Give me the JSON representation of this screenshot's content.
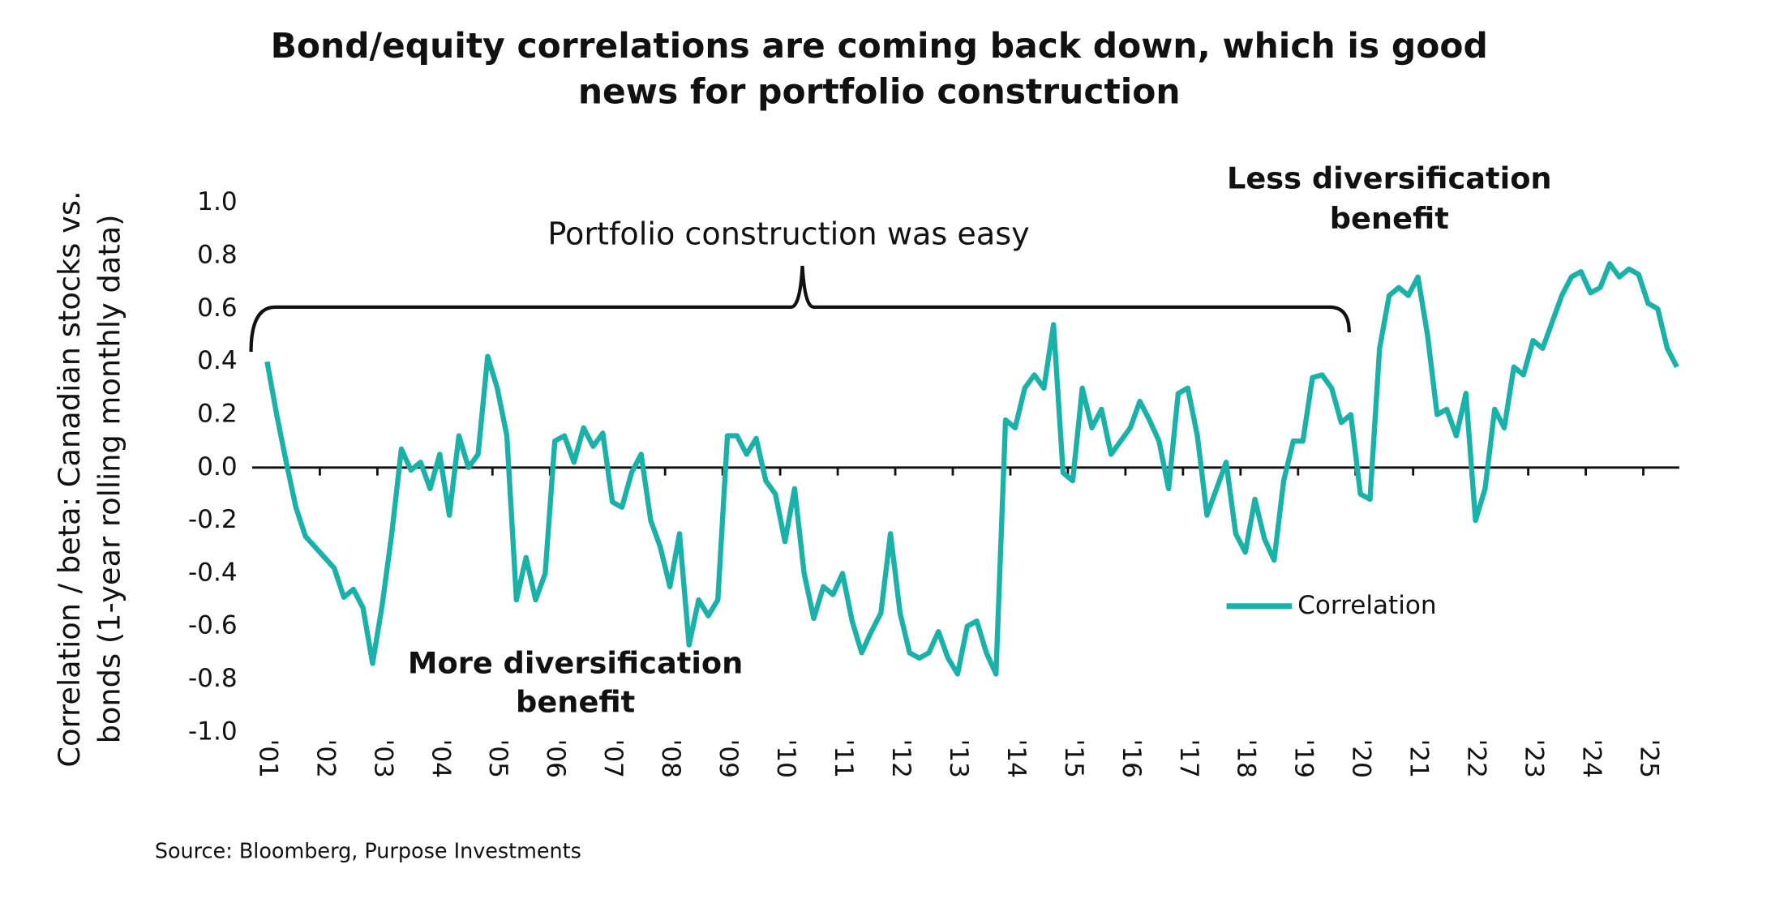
{
  "chart_data": {
    "type": "line",
    "title": [
      "Bond/equity correlations are coming back down, which is good",
      "news for portfolio construction"
    ],
    "ylabel": [
      "Correlation / beta: Canadian stocks vs.",
      "bonds (1-year rolling monthly data)"
    ],
    "source": "Source: Bloomberg, Purpose Investments",
    "annotations": [
      {
        "lines": [
          "Portfolio construction was easy"
        ]
      },
      {
        "lines": [
          "Less diversification",
          "benefit"
        ]
      },
      {
        "lines": [
          "More diversification",
          "benefit"
        ]
      }
    ],
    "categories": [
      "'01",
      null,
      null,
      null,
      null,
      null,
      "'02",
      null,
      null,
      null,
      null,
      null,
      "'03",
      null,
      null,
      null,
      null,
      null,
      "'04",
      null,
      null,
      null,
      null,
      null,
      "'05",
      null,
      null,
      null,
      null,
      null,
      "'06",
      null,
      null,
      null,
      null,
      null,
      "'07",
      null,
      null,
      null,
      null,
      null,
      "'08",
      null,
      null,
      null,
      null,
      null,
      "'09",
      null,
      null,
      null,
      null,
      null,
      "'10",
      null,
      null,
      null,
      null,
      null,
      "'11",
      null,
      null,
      null,
      null,
      null,
      "'12",
      null,
      null,
      null,
      null,
      null,
      "'13",
      null,
      null,
      null,
      null,
      null,
      "'14",
      null,
      null,
      null,
      null,
      null,
      "'15",
      null,
      null,
      null,
      null,
      null,
      "'16",
      null,
      null,
      null,
      null,
      null,
      "'17",
      null,
      null,
      null,
      null,
      null,
      "'18",
      null,
      null,
      null,
      null,
      null,
      "'19",
      null,
      null,
      null,
      null,
      null,
      "'20",
      null,
      null,
      null,
      null,
      null,
      "'21",
      null,
      null,
      null,
      null,
      null,
      "'22",
      null,
      null,
      null,
      null,
      null,
      "'23",
      null,
      null,
      null,
      null,
      null,
      "'24",
      null,
      null,
      null,
      null,
      null,
      "'25",
      null,
      null,
      null
    ],
    "series": [
      {
        "name": "Correlation",
        "color": "#1ab2a8",
        "values": [
          0.4,
          0.2,
          0.02,
          -0.15,
          -0.26,
          -0.3,
          -0.34,
          -0.38,
          -0.49,
          -0.46,
          -0.53,
          -0.74,
          -0.52,
          -0.25,
          0.07,
          -0.01,
          0.02,
          -0.08,
          0.05,
          -0.18,
          0.12,
          0.0,
          0.05,
          0.42,
          0.3,
          0.12,
          -0.5,
          -0.34,
          -0.5,
          -0.4,
          0.1,
          0.12,
          0.02,
          0.15,
          0.08,
          0.13,
          -0.13,
          -0.15,
          -0.02,
          0.05,
          -0.2,
          -0.3,
          -0.45,
          -0.25,
          -0.67,
          -0.5,
          -0.56,
          -0.5,
          0.12,
          0.12,
          0.05,
          0.11,
          -0.05,
          -0.1,
          -0.28,
          -0.08,
          -0.4,
          -0.57,
          -0.45,
          -0.48,
          -0.4,
          -0.58,
          -0.7,
          -0.62,
          -0.55,
          -0.25,
          -0.55,
          -0.7,
          -0.72,
          -0.7,
          -0.62,
          -0.72,
          -0.78,
          -0.6,
          -0.58,
          -0.7,
          -0.78,
          0.18,
          0.15,
          0.3,
          0.35,
          0.3,
          0.54,
          -0.02,
          -0.05,
          0.3,
          0.15,
          0.22,
          0.05,
          0.1,
          0.15,
          0.25,
          0.18,
          0.1,
          -0.08,
          0.28,
          0.3,
          0.12,
          -0.18,
          -0.08,
          0.02,
          -0.25,
          -0.32,
          -0.12,
          -0.27,
          -0.35,
          -0.05,
          0.1,
          0.1,
          0.34,
          0.35,
          0.3,
          0.17,
          0.2,
          -0.1,
          -0.12,
          0.45,
          0.65,
          0.68,
          0.65,
          0.72,
          0.5,
          0.2,
          0.22,
          0.12,
          0.28,
          -0.2,
          -0.08,
          0.22,
          0.15,
          0.38,
          0.35,
          0.48,
          0.45,
          0.55,
          0.65,
          0.72,
          0.74,
          0.66,
          0.68,
          0.77,
          0.72,
          0.75,
          0.73,
          0.62,
          0.6,
          0.45,
          0.38
        ]
      }
    ],
    "ylim": [
      -1,
      1
    ],
    "yticks": [
      {
        "value": -1,
        "label": "-1.0"
      },
      -0.8,
      -0.6,
      -0.4,
      -0.2,
      {
        "value": 0,
        "label": "0.0"
      },
      0.2,
      0.4,
      0.6,
      0.8,
      {
        "value": 1,
        "label": "1.0"
      }
    ],
    "legend": "right"
  }
}
